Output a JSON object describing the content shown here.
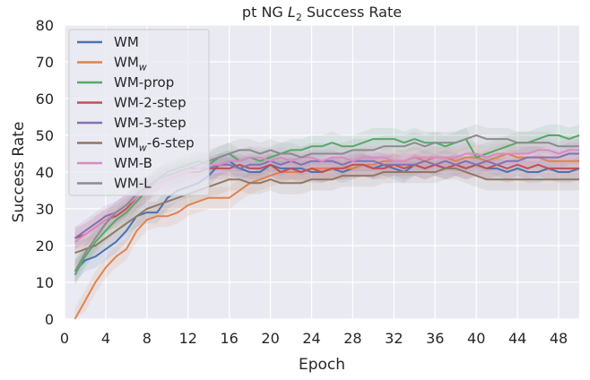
{
  "chart_data": {
    "type": "line",
    "title_main": "pt NG ",
    "title_italic": "L",
    "title_sub": "2",
    "title_tail": " Success Rate",
    "xlabel": "Epoch",
    "ylabel": "Success Rate",
    "xlim": [
      0,
      50
    ],
    "ylim": [
      0,
      80
    ],
    "xticks": [
      0,
      4,
      8,
      12,
      16,
      20,
      24,
      28,
      32,
      36,
      40,
      44,
      48
    ],
    "yticks": [
      0,
      10,
      20,
      30,
      40,
      50,
      60,
      70,
      80
    ],
    "grid": true,
    "legend_position": "top-left",
    "series": [
      {
        "name": "WM",
        "name_main": "WM",
        "name_sub": "",
        "name_tail": "",
        "color": "#4c72b0",
        "values": [
          13,
          16,
          17,
          19,
          21,
          24,
          28,
          29,
          29,
          33,
          35,
          36,
          37,
          39,
          42,
          43,
          41,
          40,
          40,
          42,
          41,
          41,
          41,
          40,
          40,
          41,
          40,
          41,
          42,
          41,
          42,
          41,
          40,
          42,
          41,
          42,
          41,
          42,
          41,
          42,
          41,
          41,
          40,
          41,
          40,
          40,
          41,
          40,
          40,
          41
        ]
      },
      {
        "name": "WMw",
        "name_main": "WM",
        "name_sub": "w",
        "name_tail": "",
        "color": "#dd8452",
        "values": [
          0,
          5,
          10,
          14,
          17,
          19,
          24,
          27,
          28,
          28,
          29,
          31,
          32,
          33,
          33,
          33,
          35,
          37,
          38,
          39,
          40,
          40,
          40,
          41,
          41,
          41,
          41,
          41,
          42,
          42,
          43,
          43,
          43,
          44,
          43,
          44,
          44,
          43,
          44,
          44,
          43,
          44,
          45,
          44,
          44,
          44,
          43,
          43,
          43,
          43
        ]
      },
      {
        "name": "WM-prop",
        "name_main": "WM-prop",
        "name_sub": "",
        "name_tail": "",
        "color": "#55a868",
        "values": [
          12,
          17,
          21,
          24,
          27,
          29,
          32,
          35,
          38,
          40,
          41,
          42,
          43,
          42,
          44,
          45,
          43,
          44,
          43,
          44,
          45,
          46,
          46,
          47,
          47,
          48,
          47,
          47,
          48,
          49,
          49,
          49,
          48,
          49,
          48,
          48,
          47,
          48,
          49,
          44,
          45,
          46,
          47,
          48,
          48,
          49,
          50,
          50,
          49,
          50
        ]
      },
      {
        "name": "WM-2-step",
        "name_main": "WM-2-step",
        "name_sub": "",
        "name_tail": "",
        "color": "#c44e52",
        "values": [
          22,
          23,
          25,
          27,
          28,
          30,
          33,
          35,
          37,
          38,
          39,
          40,
          40,
          41,
          41,
          41,
          42,
          41,
          41,
          42,
          40,
          41,
          40,
          41,
          40,
          41,
          41,
          42,
          42,
          41,
          41,
          42,
          41,
          42,
          41,
          42,
          41,
          42,
          41,
          42,
          41,
          42,
          41,
          42,
          41,
          42,
          41,
          41,
          41,
          41
        ]
      },
      {
        "name": "WM-3-step",
        "name_main": "WM-3-step",
        "name_sub": "",
        "name_tail": "",
        "color": "#8172b3",
        "values": [
          22,
          24,
          26,
          28,
          29,
          31,
          34,
          36,
          38,
          39,
          40,
          41,
          41,
          41,
          42,
          42,
          41,
          42,
          42,
          43,
          42,
          43,
          42,
          43,
          43,
          43,
          42,
          43,
          43,
          43,
          42,
          42,
          42,
          42,
          43,
          42,
          43,
          42,
          43,
          42,
          43,
          42,
          43,
          43,
          44,
          44,
          44,
          44,
          45,
          45
        ]
      },
      {
        "name": "WMw-6-step",
        "name_main": "WM",
        "name_sub": "w",
        "name_tail": "-6-step",
        "color": "#937860",
        "values": [
          18,
          19,
          20,
          22,
          24,
          26,
          28,
          30,
          31,
          32,
          33,
          34,
          35,
          36,
          37,
          38,
          38,
          37,
          37,
          38,
          37,
          37,
          37,
          38,
          38,
          38,
          39,
          39,
          39,
          39,
          40,
          40,
          40,
          40,
          40,
          40,
          41,
          41,
          40,
          39,
          38,
          38,
          38,
          38,
          38,
          38,
          38,
          38,
          38,
          38
        ]
      },
      {
        "name": "WM-B",
        "name_main": "WM-B",
        "name_sub": "",
        "name_tail": "",
        "color": "#da8bc3",
        "values": [
          21,
          23,
          25,
          27,
          29,
          31,
          33,
          35,
          37,
          38,
          39,
          40,
          41,
          42,
          42,
          43,
          43,
          44,
          44,
          43,
          44,
          43,
          44,
          44,
          43,
          44,
          44,
          43,
          44,
          44,
          44,
          43,
          43,
          44,
          44,
          44,
          44,
          44,
          45,
          45,
          44,
          45,
          45,
          45,
          45,
          46,
          46,
          45,
          46,
          46
        ]
      },
      {
        "name": "WM-L",
        "name_main": "WM-L",
        "name_sub": "",
        "name_tail": "",
        "color": "#8c8c8c",
        "values": [
          13,
          18,
          22,
          26,
          29,
          31,
          34,
          36,
          38,
          39,
          40,
          41,
          42,
          43,
          44,
          45,
          46,
          46,
          45,
          46,
          45,
          45,
          44,
          45,
          45,
          45,
          45,
          46,
          46,
          46,
          47,
          47,
          47,
          48,
          47,
          48,
          48,
          48,
          49,
          50,
          49,
          49,
          49,
          48,
          48,
          48,
          48,
          47,
          47,
          47
        ]
      }
    ]
  }
}
